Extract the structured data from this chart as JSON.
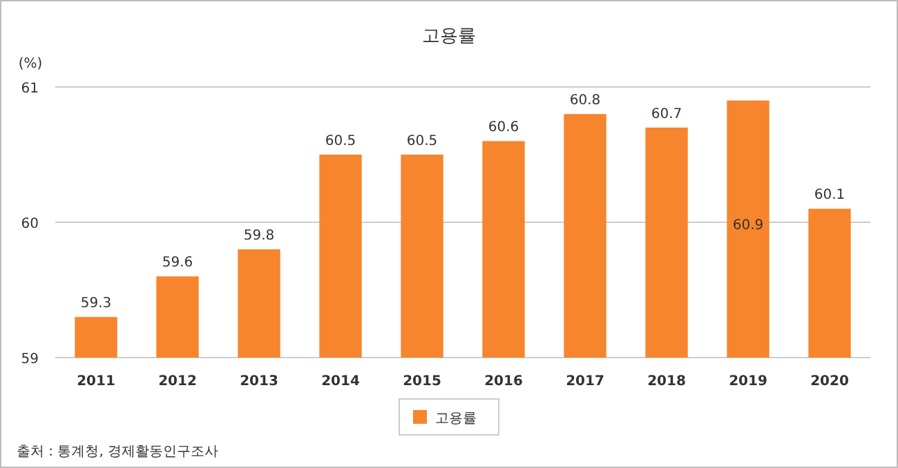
{
  "chart_data": {
    "type": "bar",
    "title": "고용률",
    "ylabel": "(%)",
    "categories": [
      "2011",
      "2012",
      "2013",
      "2014",
      "2015",
      "2016",
      "2017",
      "2018",
      "2019",
      "2020"
    ],
    "series": [
      {
        "name": "고용률",
        "color": "#f7852d",
        "values": [
          59.3,
          59.6,
          59.8,
          60.5,
          60.5,
          60.6,
          60.8,
          60.7,
          60.9,
          60.1
        ]
      }
    ],
    "ylim": [
      59,
      61
    ],
    "yticks": [
      59,
      60,
      61
    ],
    "grid": "y",
    "data_labels": true,
    "legend": "bottom",
    "annotations": [
      "출처 : 통계청, 경제활동인구조사"
    ]
  }
}
